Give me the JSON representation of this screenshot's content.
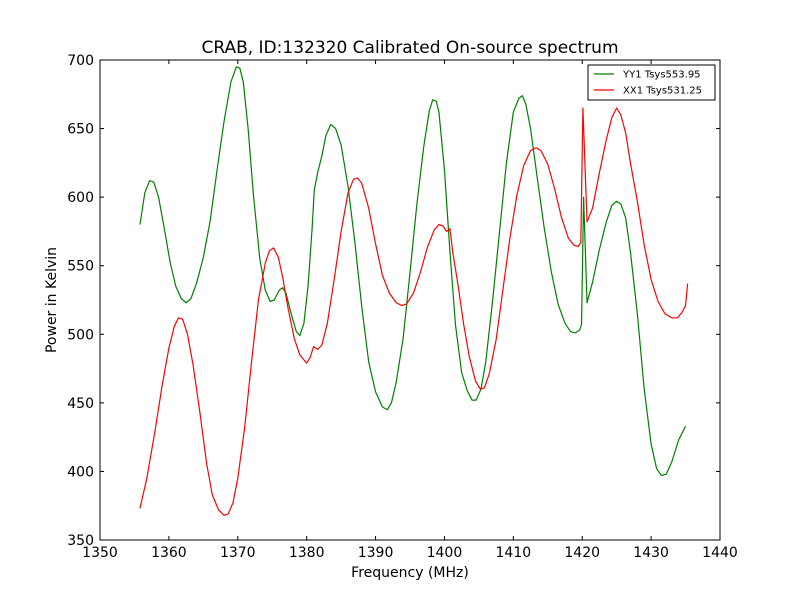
{
  "chart_data": {
    "type": "line",
    "title": "CRAB, ID:132320 Calibrated On-source spectrum",
    "xlabel": "Frequency (MHz)",
    "ylabel": "Power in Kelvin",
    "xlim": [
      1350,
      1440
    ],
    "ylim": [
      350,
      700
    ],
    "x_ticks": [
      "1350",
      "1360",
      "1370",
      "1380",
      "1390",
      "1400",
      "1410",
      "1420",
      "1430",
      "1440"
    ],
    "y_ticks": [
      "350",
      "400",
      "450",
      "500",
      "550",
      "600",
      "650",
      "700"
    ],
    "grid": false,
    "legend_position": "top-right",
    "series": [
      {
        "name": "YY1 Tsys553.95",
        "color": "#008000",
        "points": [
          [
            1355.8,
            580
          ],
          [
            1356.5,
            603
          ],
          [
            1357.2,
            612
          ],
          [
            1357.8,
            611
          ],
          [
            1358.5,
            600
          ],
          [
            1359.3,
            578
          ],
          [
            1360.2,
            552
          ],
          [
            1361.0,
            535
          ],
          [
            1361.8,
            526
          ],
          [
            1362.5,
            523
          ],
          [
            1363.2,
            526
          ],
          [
            1364.0,
            537
          ],
          [
            1365.0,
            556
          ],
          [
            1366.0,
            583
          ],
          [
            1367.0,
            620
          ],
          [
            1368.0,
            655
          ],
          [
            1369.0,
            684
          ],
          [
            1369.8,
            695
          ],
          [
            1370.3,
            694
          ],
          [
            1370.8,
            684
          ],
          [
            1371.5,
            650
          ],
          [
            1372.3,
            600
          ],
          [
            1373.2,
            555
          ],
          [
            1374.0,
            532
          ],
          [
            1374.7,
            524
          ],
          [
            1375.3,
            525
          ],
          [
            1376.0,
            532
          ],
          [
            1376.5,
            534
          ],
          [
            1377.0,
            530
          ],
          [
            1377.7,
            516
          ],
          [
            1378.5,
            502
          ],
          [
            1379.0,
            499
          ],
          [
            1379.6,
            508
          ],
          [
            1380.2,
            535
          ],
          [
            1380.8,
            578
          ],
          [
            1381.1,
            605
          ],
          [
            1381.6,
            618
          ],
          [
            1382.2,
            630
          ],
          [
            1382.8,
            645
          ],
          [
            1383.5,
            653
          ],
          [
            1384.2,
            650
          ],
          [
            1385.0,
            638
          ],
          [
            1386.0,
            608
          ],
          [
            1387.0,
            567
          ],
          [
            1388.0,
            520
          ],
          [
            1389.0,
            480
          ],
          [
            1390.0,
            458
          ],
          [
            1391.0,
            447
          ],
          [
            1391.7,
            445
          ],
          [
            1392.3,
            450
          ],
          [
            1393.0,
            465
          ],
          [
            1394.0,
            497
          ],
          [
            1395.0,
            545
          ],
          [
            1396.0,
            595
          ],
          [
            1397.0,
            637
          ],
          [
            1397.8,
            663
          ],
          [
            1398.3,
            671
          ],
          [
            1398.8,
            670
          ],
          [
            1399.2,
            662
          ],
          [
            1400.0,
            620
          ],
          [
            1400.8,
            560
          ],
          [
            1401.6,
            507
          ],
          [
            1402.5,
            472
          ],
          [
            1403.3,
            459
          ],
          [
            1404.0,
            452
          ],
          [
            1404.6,
            452
          ],
          [
            1405.3,
            460
          ],
          [
            1406.0,
            480
          ],
          [
            1407.0,
            525
          ],
          [
            1408.0,
            575
          ],
          [
            1409.0,
            625
          ],
          [
            1410.0,
            662
          ],
          [
            1410.8,
            672
          ],
          [
            1411.3,
            674
          ],
          [
            1411.8,
            668
          ],
          [
            1412.5,
            650
          ],
          [
            1413.5,
            613
          ],
          [
            1414.5,
            577
          ],
          [
            1415.5,
            546
          ],
          [
            1416.5,
            522
          ],
          [
            1417.5,
            508
          ],
          [
            1418.3,
            502
          ],
          [
            1419.0,
            501
          ],
          [
            1419.6,
            503
          ],
          [
            1419.9,
            507
          ],
          [
            1420.2,
            600
          ],
          [
            1420.7,
            523
          ],
          [
            1421.5,
            538
          ],
          [
            1422.5,
            562
          ],
          [
            1423.5,
            582
          ],
          [
            1424.3,
            594
          ],
          [
            1425.0,
            597
          ],
          [
            1425.6,
            595
          ],
          [
            1426.3,
            585
          ],
          [
            1427.0,
            560
          ],
          [
            1428.0,
            515
          ],
          [
            1429.0,
            460
          ],
          [
            1430.0,
            420
          ],
          [
            1430.8,
            402
          ],
          [
            1431.5,
            397
          ],
          [
            1432.2,
            398
          ],
          [
            1433.0,
            407
          ],
          [
            1434.0,
            423
          ],
          [
            1435.0,
            433
          ]
        ]
      },
      {
        "name": "XX1 Tsys531.25",
        "color": "#ff0000",
        "points": [
          [
            1355.8,
            373
          ],
          [
            1356.8,
            395
          ],
          [
            1358.0,
            430
          ],
          [
            1359.0,
            462
          ],
          [
            1360.0,
            490
          ],
          [
            1360.8,
            506
          ],
          [
            1361.4,
            512
          ],
          [
            1362.0,
            511
          ],
          [
            1362.7,
            500
          ],
          [
            1363.5,
            478
          ],
          [
            1364.5,
            443
          ],
          [
            1365.5,
            405
          ],
          [
            1366.3,
            383
          ],
          [
            1367.2,
            372
          ],
          [
            1368.0,
            368
          ],
          [
            1368.6,
            369
          ],
          [
            1369.3,
            377
          ],
          [
            1370.0,
            395
          ],
          [
            1371.0,
            432
          ],
          [
            1372.0,
            480
          ],
          [
            1373.0,
            525
          ],
          [
            1374.0,
            552
          ],
          [
            1374.6,
            561
          ],
          [
            1375.2,
            563
          ],
          [
            1375.9,
            556
          ],
          [
            1376.5,
            542
          ],
          [
            1377.3,
            519
          ],
          [
            1378.2,
            497
          ],
          [
            1379.0,
            485
          ],
          [
            1380.0,
            479
          ],
          [
            1380.5,
            483
          ],
          [
            1381.0,
            491
          ],
          [
            1381.6,
            489
          ],
          [
            1382.2,
            492
          ],
          [
            1383.0,
            508
          ],
          [
            1384.0,
            540
          ],
          [
            1385.0,
            575
          ],
          [
            1386.0,
            603
          ],
          [
            1386.8,
            613
          ],
          [
            1387.4,
            614
          ],
          [
            1388.0,
            610
          ],
          [
            1389.0,
            592
          ],
          [
            1390.0,
            566
          ],
          [
            1391.0,
            543
          ],
          [
            1392.0,
            530
          ],
          [
            1393.0,
            523
          ],
          [
            1393.8,
            521
          ],
          [
            1394.5,
            522
          ],
          [
            1395.5,
            530
          ],
          [
            1396.5,
            545
          ],
          [
            1397.5,
            563
          ],
          [
            1398.5,
            576
          ],
          [
            1399.2,
            580
          ],
          [
            1399.8,
            579
          ],
          [
            1400.3,
            575
          ],
          [
            1400.8,
            577
          ],
          [
            1401.2,
            560
          ],
          [
            1402.0,
            535
          ],
          [
            1402.8,
            507
          ],
          [
            1403.6,
            484
          ],
          [
            1404.5,
            466
          ],
          [
            1405.2,
            460
          ],
          [
            1405.8,
            461
          ],
          [
            1406.5,
            471
          ],
          [
            1407.5,
            496
          ],
          [
            1408.5,
            533
          ],
          [
            1409.5,
            570
          ],
          [
            1410.5,
            601
          ],
          [
            1411.5,
            623
          ],
          [
            1412.5,
            634
          ],
          [
            1413.3,
            636
          ],
          [
            1414.0,
            634
          ],
          [
            1415.0,
            624
          ],
          [
            1416.0,
            606
          ],
          [
            1417.0,
            585
          ],
          [
            1418.0,
            570
          ],
          [
            1418.8,
            565
          ],
          [
            1419.4,
            564
          ],
          [
            1419.8,
            567
          ],
          [
            1420.1,
            665
          ],
          [
            1420.7,
            582
          ],
          [
            1421.5,
            592
          ],
          [
            1422.5,
            618
          ],
          [
            1423.5,
            642
          ],
          [
            1424.3,
            658
          ],
          [
            1425.0,
            665
          ],
          [
            1425.6,
            660
          ],
          [
            1426.3,
            647
          ],
          [
            1427.0,
            625
          ],
          [
            1428.0,
            597
          ],
          [
            1429.0,
            565
          ],
          [
            1430.0,
            540
          ],
          [
            1431.0,
            524
          ],
          [
            1432.0,
            515
          ],
          [
            1433.0,
            512
          ],
          [
            1433.8,
            512
          ],
          [
            1434.5,
            516
          ],
          [
            1435.0,
            521
          ],
          [
            1435.3,
            537
          ]
        ]
      }
    ]
  }
}
